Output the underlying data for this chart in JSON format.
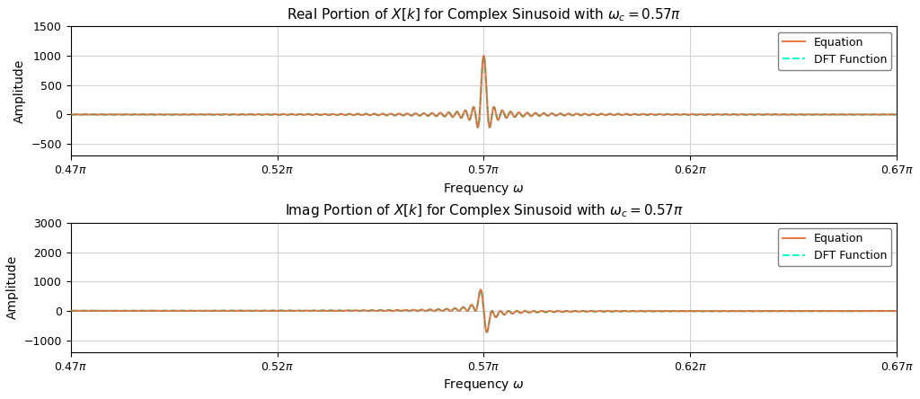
{
  "omega_c": 0.57,
  "omega_min": 0.47,
  "omega_max": 0.67,
  "title_real": "Real Portion of $X[k]$ for Complex Sinusoid with $\\omega_c = 0.57\\pi$",
  "title_imag": "Imag Portion of $X[k]$ for Complex Sinusoid with $\\omega_c = 0.57\\pi$",
  "xlabel": "Frequency $\\omega$",
  "ylabel": "Amplitude",
  "color_equation": "#E8622A",
  "color_dft": "#00FFCC",
  "ylim_real": [
    -700,
    1500
  ],
  "ylim_imag": [
    -1400,
    3000
  ],
  "yticks_real": [
    -500,
    0,
    500,
    1000,
    1500
  ],
  "yticks_imag": [
    -1000,
    0,
    1000,
    2000,
    3000
  ],
  "xticks": [
    0.47,
    0.52,
    0.57,
    0.62,
    0.67
  ],
  "legend_equation": "Equation",
  "legend_dft": "DFT Function",
  "figsize": [
    10.24,
    4.44
  ],
  "dpi": 100,
  "num_samples": 10000,
  "N_signal": 1000
}
